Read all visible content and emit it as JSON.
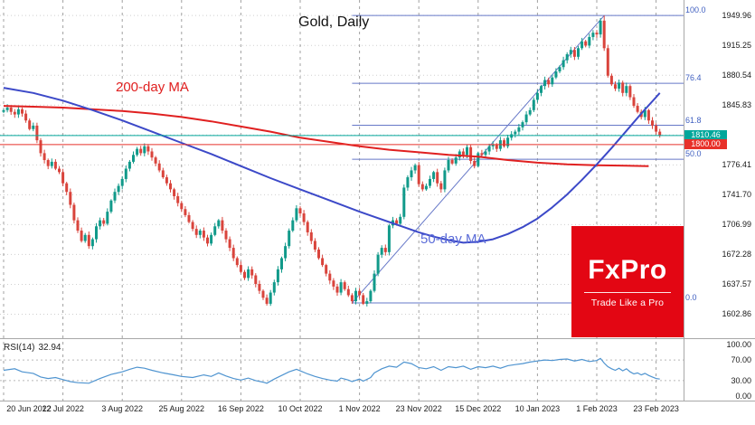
{
  "header": {
    "title": "Gold, Daily"
  },
  "overlays": {
    "ma200_label": "200-day MA",
    "ma50_label": "50-day MA",
    "rsi_name": "RSI(14)",
    "rsi_value": "32.94"
  },
  "logo": {
    "name": "FxPro",
    "tagline": "Trade Like a Pro",
    "bg_color": "#e30613"
  },
  "colors": {
    "up_candle": "#119a8a",
    "down_candle": "#d9443c",
    "ma200": "#e02020",
    "ma50": "#3c49c8",
    "fib": "#6678c8",
    "fib_label": "#3f5fc0",
    "rsi_line": "#4f94d0",
    "grid_vertical": "#6f6f6f",
    "grid_horizontal": "#cfcfcf",
    "border": "#a8a8a8"
  },
  "chart_data": {
    "type": "candlestick",
    "title": "Gold, Daily",
    "timeframe": "Daily",
    "ylim": [
      1575,
      1968
    ],
    "price_gridline_top": 1949.96,
    "price_gridline_step": 34.71,
    "y_tick_labels": [
      1949.96,
      1915.25,
      1880.54,
      1845.83,
      1776.41,
      1741.7,
      1706.99,
      1672.28,
      1637.57,
      1602.86
    ],
    "x_tick_labels": [
      "20 Jun 2022",
      "12 Jul 2022",
      "3 Aug 2022",
      "25 Aug 2022",
      "16 Sep 2022",
      "10 Oct 2022",
      "1 Nov 2022",
      "23 Nov 2022",
      "15 Dec 2022",
      "10 Jan 2023",
      "1 Feb 2023",
      "23 Feb 2023"
    ],
    "ticks_every_n_candles": 16,
    "candles": {
      "first_open": 1838,
      "closes": [
        1840,
        1843,
        1838,
        1835,
        1841,
        1836,
        1828,
        1818,
        1822,
        1805,
        1790,
        1782,
        1775,
        1780,
        1772,
        1768,
        1755,
        1745,
        1730,
        1712,
        1700,
        1688,
        1695,
        1682,
        1690,
        1705,
        1712,
        1708,
        1722,
        1735,
        1745,
        1752,
        1760,
        1772,
        1780,
        1788,
        1795,
        1790,
        1798,
        1792,
        1785,
        1778,
        1770,
        1762,
        1755,
        1748,
        1740,
        1732,
        1725,
        1718,
        1710,
        1702,
        1695,
        1700,
        1692,
        1685,
        1695,
        1705,
        1712,
        1700,
        1690,
        1680,
        1668,
        1660,
        1652,
        1645,
        1655,
        1648,
        1638,
        1630,
        1622,
        1615,
        1628,
        1640,
        1655,
        1668,
        1682,
        1700,
        1712,
        1726,
        1720,
        1710,
        1698,
        1688,
        1678,
        1668,
        1660,
        1650,
        1642,
        1635,
        1628,
        1640,
        1632,
        1625,
        1618,
        1630,
        1625,
        1615,
        1618,
        1630,
        1650,
        1672,
        1680,
        1675,
        1706,
        1712,
        1708,
        1716,
        1750,
        1762,
        1770,
        1776,
        1754,
        1748,
        1752,
        1760,
        1768,
        1755,
        1748,
        1770,
        1782,
        1778,
        1785,
        1792,
        1788,
        1797,
        1781,
        1775,
        1790,
        1788,
        1792,
        1798,
        1800,
        1795,
        1805,
        1798,
        1808,
        1812,
        1815,
        1820,
        1826,
        1835,
        1840,
        1852,
        1860,
        1868,
        1875,
        1870,
        1878,
        1885,
        1890,
        1898,
        1905,
        1910,
        1902,
        1912,
        1920,
        1915,
        1925,
        1930,
        1928,
        1944,
        1912,
        1880,
        1870,
        1865,
        1872,
        1860,
        1868,
        1855,
        1845,
        1838,
        1832,
        1840,
        1828,
        1822,
        1815,
        1810.46
      ],
      "high_overrides": {
        "161": 1947.0,
        "162": 1949.96
      },
      "low_overrides": {
        "71": 1612.9,
        "97": 1613.6
      }
    },
    "series": [
      {
        "name": "200-day MA",
        "color": "#e02020",
        "points": [
          [
            0,
            1845
          ],
          [
            8,
            1844
          ],
          [
            16,
            1843
          ],
          [
            24,
            1841
          ],
          [
            32,
            1839
          ],
          [
            40,
            1836
          ],
          [
            48,
            1832
          ],
          [
            56,
            1827
          ],
          [
            64,
            1821
          ],
          [
            72,
            1815
          ],
          [
            80,
            1808
          ],
          [
            88,
            1803
          ],
          [
            96,
            1798
          ],
          [
            104,
            1794
          ],
          [
            112,
            1791
          ],
          [
            120,
            1788
          ],
          [
            128,
            1786
          ],
          [
            136,
            1782
          ],
          [
            144,
            1779
          ],
          [
            152,
            1777
          ],
          [
            160,
            1776
          ],
          [
            168,
            1775.5
          ],
          [
            174,
            1775
          ]
        ]
      },
      {
        "name": "50-day MA",
        "color": "#3c49c8",
        "points": [
          [
            0,
            1866
          ],
          [
            8,
            1860
          ],
          [
            16,
            1851
          ],
          [
            24,
            1840
          ],
          [
            32,
            1828
          ],
          [
            40,
            1815
          ],
          [
            48,
            1802
          ],
          [
            56,
            1789
          ],
          [
            64,
            1775
          ],
          [
            72,
            1761
          ],
          [
            80,
            1748
          ],
          [
            88,
            1735
          ],
          [
            96,
            1722
          ],
          [
            100,
            1716
          ],
          [
            104,
            1710
          ],
          [
            108,
            1704
          ],
          [
            112,
            1698
          ],
          [
            116,
            1693
          ],
          [
            120,
            1689
          ],
          [
            124,
            1686
          ],
          [
            128,
            1687
          ],
          [
            132,
            1690
          ],
          [
            136,
            1696
          ],
          [
            140,
            1704
          ],
          [
            144,
            1714
          ],
          [
            148,
            1727
          ],
          [
            152,
            1742
          ],
          [
            156,
            1759
          ],
          [
            160,
            1777
          ],
          [
            164,
            1796
          ],
          [
            168,
            1816
          ],
          [
            172,
            1836
          ],
          [
            176,
            1855
          ],
          [
            177,
            1860
          ]
        ]
      }
    ],
    "fibonacci": {
      "low_price": 1616.0,
      "high_price": 1949.96,
      "low_index": 94,
      "high_index": 162,
      "levels": [
        {
          "pct": "100.0",
          "price": 1949.96
        },
        {
          "pct": "76.4",
          "price": 1871.15
        },
        {
          "pct": "61.8",
          "price": 1822.41
        },
        {
          "pct": "50.0",
          "price": 1782.98
        },
        {
          "pct": "0.0",
          "price": 1616.0
        }
      ]
    },
    "price_lines": [
      {
        "label": "current-price",
        "value": 1810.46,
        "color": "#00a79b"
      },
      {
        "label": "level-1800",
        "value": 1800.0,
        "color": "#e8312a"
      }
    ],
    "rsi": {
      "name": "RSI(14)",
      "last": 32.94,
      "ylim": [
        0,
        100
      ],
      "y_tick_labels": [
        100,
        70,
        30,
        0
      ],
      "levels": [
        70,
        30
      ],
      "points": [
        [
          0,
          50
        ],
        [
          3,
          53
        ],
        [
          5,
          47
        ],
        [
          8,
          44
        ],
        [
          10,
          37
        ],
        [
          12,
          34
        ],
        [
          14,
          36
        ],
        [
          16,
          32
        ],
        [
          18,
          28
        ],
        [
          20,
          26
        ],
        [
          23,
          25
        ],
        [
          26,
          34
        ],
        [
          29,
          42
        ],
        [
          32,
          47
        ],
        [
          34,
          52
        ],
        [
          36,
          56
        ],
        [
          38,
          54
        ],
        [
          40,
          50
        ],
        [
          43,
          45
        ],
        [
          46,
          41
        ],
        [
          48,
          38
        ],
        [
          51,
          36
        ],
        [
          54,
          41
        ],
        [
          56,
          38
        ],
        [
          58,
          45
        ],
        [
          60,
          39
        ],
        [
          62,
          34
        ],
        [
          64,
          31
        ],
        [
          66,
          35
        ],
        [
          68,
          30
        ],
        [
          70,
          27
        ],
        [
          71,
          25
        ],
        [
          73,
          33
        ],
        [
          75,
          40
        ],
        [
          77,
          47
        ],
        [
          79,
          52
        ],
        [
          80,
          49
        ],
        [
          82,
          43
        ],
        [
          84,
          38
        ],
        [
          86,
          34
        ],
        [
          88,
          31
        ],
        [
          90,
          29
        ],
        [
          91,
          35
        ],
        [
          93,
          31
        ],
        [
          94,
          28
        ],
        [
          96,
          33
        ],
        [
          97,
          29
        ],
        [
          99,
          36
        ],
        [
          100,
          45
        ],
        [
          102,
          53
        ],
        [
          104,
          58
        ],
        [
          106,
          56
        ],
        [
          108,
          66
        ],
        [
          110,
          63
        ],
        [
          112,
          55
        ],
        [
          114,
          53
        ],
        [
          116,
          57
        ],
        [
          118,
          50
        ],
        [
          120,
          57
        ],
        [
          122,
          55
        ],
        [
          124,
          58
        ],
        [
          126,
          52
        ],
        [
          128,
          57
        ],
        [
          130,
          55
        ],
        [
          132,
          58
        ],
        [
          134,
          54
        ],
        [
          136,
          59
        ],
        [
          138,
          61
        ],
        [
          140,
          63
        ],
        [
          142,
          66
        ],
        [
          144,
          68
        ],
        [
          146,
          70
        ],
        [
          148,
          69
        ],
        [
          150,
          71
        ],
        [
          152,
          72
        ],
        [
          154,
          68
        ],
        [
          156,
          71
        ],
        [
          158,
          67
        ],
        [
          160,
          69
        ],
        [
          161,
          73
        ],
        [
          162,
          64
        ],
        [
          163,
          57
        ],
        [
          164,
          53
        ],
        [
          165,
          50
        ],
        [
          166,
          54
        ],
        [
          167,
          49
        ],
        [
          168,
          53
        ],
        [
          169,
          47
        ],
        [
          170,
          43
        ],
        [
          171,
          45
        ],
        [
          172,
          41
        ],
        [
          173,
          44
        ],
        [
          174,
          40
        ],
        [
          175,
          37
        ],
        [
          176,
          34
        ],
        [
          177,
          32.94
        ]
      ]
    }
  }
}
